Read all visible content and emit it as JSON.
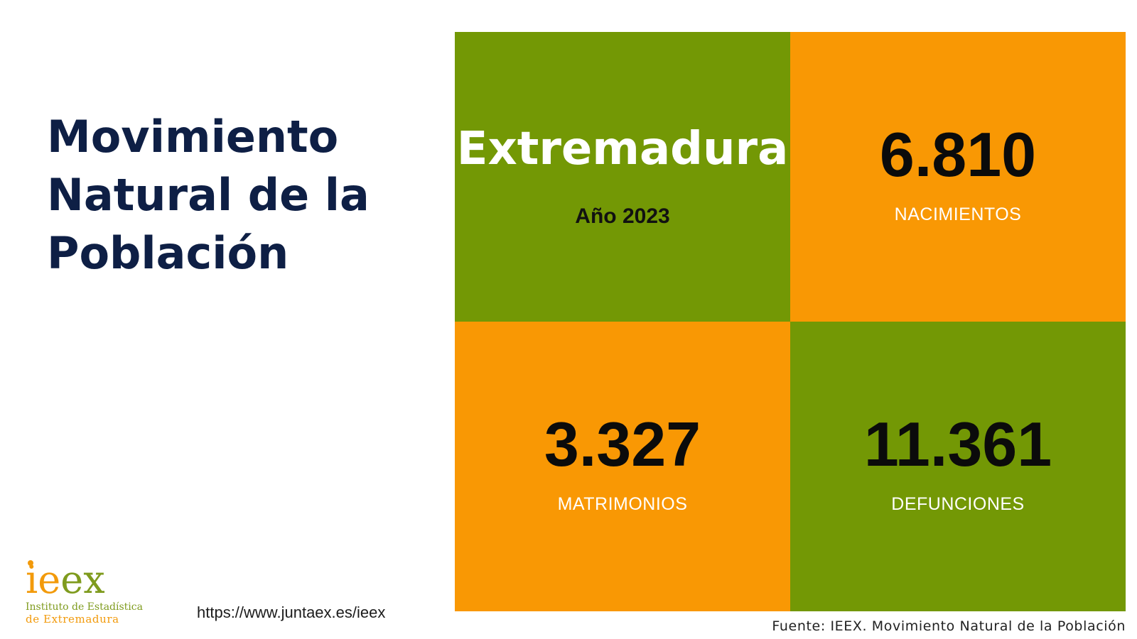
{
  "colors": {
    "green": "#739805",
    "orange": "#f99804",
    "navy": "#0e1f45",
    "logo_orange": "#f29a0b",
    "logo_green": "#7f9b1e"
  },
  "title": {
    "lines": [
      "Movimiento",
      "Natural de la",
      "Población"
    ]
  },
  "region": {
    "name": "Extremadura",
    "year": "Año 2023"
  },
  "stats": [
    {
      "value": "6.810",
      "label": "NACIMIENTOS"
    },
    {
      "value": "3.327",
      "label": "MATRIMONIOS"
    },
    {
      "value": "11.361",
      "label": "DEFUNCIONES"
    }
  ],
  "logo": {
    "letters": [
      "ie",
      "ex"
    ],
    "line1": "Instituto de Estadística",
    "line2": "de Extremadura"
  },
  "url": "https://www.juntaex.es/ieex",
  "source": "Fuente: IEEX. Movimiento Natural de la Población"
}
